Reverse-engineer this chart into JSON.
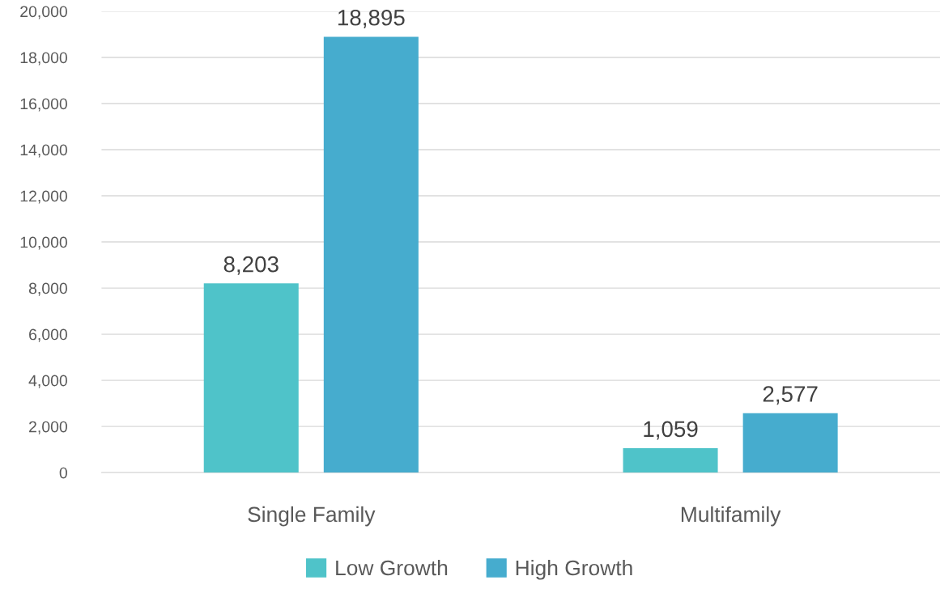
{
  "chart_data": {
    "type": "bar",
    "categories": [
      "Single Family",
      "Multifamily"
    ],
    "series": [
      {
        "name": "Low Growth",
        "color": "#4fc3c9",
        "values": [
          8203,
          1059
        ],
        "value_labels": [
          "8,203",
          "1,059"
        ]
      },
      {
        "name": "High Growth",
        "color": "#46acce",
        "values": [
          18895,
          2577
        ],
        "value_labels": [
          "18,895",
          "2,577"
        ]
      }
    ],
    "ylim": [
      0,
      20000
    ],
    "yticks": [
      {
        "value": 0,
        "label": "0"
      },
      {
        "value": 2000,
        "label": "2,000"
      },
      {
        "value": 4000,
        "label": "4,000"
      },
      {
        "value": 6000,
        "label": "6,000"
      },
      {
        "value": 8000,
        "label": "8,000"
      },
      {
        "value": 10000,
        "label": "10,000"
      },
      {
        "value": 12000,
        "label": "12,000"
      },
      {
        "value": 14000,
        "label": "14,000"
      },
      {
        "value": 16000,
        "label": "16,000"
      },
      {
        "value": 18000,
        "label": "18,000"
      },
      {
        "value": 20000,
        "label": "20,000"
      }
    ],
    "grid": "y",
    "legend": "bottom"
  }
}
